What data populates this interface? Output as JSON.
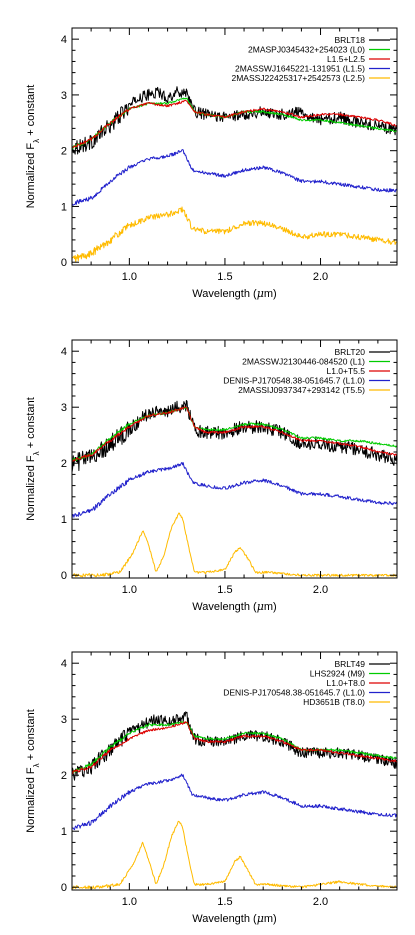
{
  "chart_data": [
    {
      "type": "line",
      "xlabel_prefix": "Wavelength (",
      "xlabel_mu": "μ",
      "xlabel_suffix": "m)",
      "ylabel_prefix": "Normalized F",
      "ylabel_sub": "λ",
      "ylabel_suffix": " + constant",
      "xlim": [
        0.7,
        2.4
      ],
      "ylim": [
        -0.05,
        4.2
      ],
      "xticks": [
        1.0,
        1.5,
        2.0
      ],
      "xtick_labels": [
        "1.0",
        "1.5",
        "2.0"
      ],
      "yticks": [
        0,
        1,
        2,
        3,
        4
      ],
      "ytick_labels": [
        "0",
        "1",
        "2",
        "3",
        "4"
      ],
      "legend_position": "top-right",
      "series": [
        {
          "name": "BRLT18",
          "color": "#000000",
          "noise": 0.1,
          "x": [
            0.7,
            0.8,
            0.9,
            1.0,
            1.05,
            1.1,
            1.15,
            1.2,
            1.25,
            1.3,
            1.34,
            1.4,
            1.5,
            1.6,
            1.7,
            1.8,
            1.9,
            2.0,
            2.1,
            2.2,
            2.3,
            2.4
          ],
          "y": [
            2.05,
            2.15,
            2.45,
            2.8,
            2.95,
            3.0,
            3.05,
            2.95,
            3.05,
            3.05,
            2.7,
            2.65,
            2.6,
            2.65,
            2.7,
            2.65,
            2.7,
            2.55,
            2.6,
            2.5,
            2.45,
            2.35
          ]
        },
        {
          "name": "2MASPJ0345432+254023 (L0)",
          "color": "#00cc00",
          "noise": 0.02,
          "x": [
            0.7,
            0.8,
            0.9,
            1.0,
            1.1,
            1.2,
            1.3,
            1.34,
            1.4,
            1.5,
            1.6,
            1.7,
            1.8,
            1.9,
            2.0,
            2.1,
            2.2,
            2.3,
            2.4
          ],
          "y": [
            2.05,
            2.2,
            2.5,
            2.75,
            2.85,
            2.85,
            2.95,
            2.7,
            2.65,
            2.6,
            2.7,
            2.7,
            2.65,
            2.55,
            2.55,
            2.5,
            2.45,
            2.4,
            2.35
          ]
        },
        {
          "name": "L1.5+L2.5",
          "color": "#dd0000",
          "noise": 0.02,
          "x": [
            0.7,
            0.8,
            0.9,
            1.0,
            1.1,
            1.2,
            1.3,
            1.34,
            1.4,
            1.5,
            1.6,
            1.7,
            1.8,
            1.9,
            2.0,
            2.1,
            2.2,
            2.3,
            2.4
          ],
          "y": [
            2.05,
            2.2,
            2.5,
            2.75,
            2.85,
            2.8,
            2.9,
            2.7,
            2.65,
            2.6,
            2.7,
            2.75,
            2.7,
            2.6,
            2.65,
            2.65,
            2.6,
            2.55,
            2.45
          ]
        },
        {
          "name": "2MASSWJ1645221-131951 (L1.5)",
          "color": "#2222cc",
          "noise": 0.03,
          "x": [
            0.7,
            0.8,
            0.9,
            1.0,
            1.1,
            1.2,
            1.28,
            1.33,
            1.4,
            1.5,
            1.6,
            1.7,
            1.8,
            1.9,
            2.0,
            2.1,
            2.2,
            2.3,
            2.4
          ],
          "y": [
            1.05,
            1.15,
            1.45,
            1.7,
            1.85,
            1.9,
            2.0,
            1.65,
            1.6,
            1.55,
            1.65,
            1.7,
            1.6,
            1.45,
            1.45,
            1.4,
            1.35,
            1.3,
            1.28
          ]
        },
        {
          "name": "2MASSJ22425317+2542573 (L2.5)",
          "color": "#ffbb00",
          "noise": 0.05,
          "x": [
            0.7,
            0.8,
            0.9,
            1.0,
            1.1,
            1.2,
            1.28,
            1.33,
            1.4,
            1.5,
            1.6,
            1.7,
            1.8,
            1.9,
            2.0,
            2.1,
            2.2,
            2.3,
            2.4
          ],
          "y": [
            0.05,
            0.15,
            0.4,
            0.65,
            0.8,
            0.85,
            0.95,
            0.6,
            0.55,
            0.55,
            0.7,
            0.7,
            0.6,
            0.45,
            0.5,
            0.5,
            0.45,
            0.4,
            0.35
          ]
        }
      ]
    },
    {
      "type": "line",
      "xlabel_prefix": "Wavelength (",
      "xlabel_mu": "μ",
      "xlabel_suffix": "m)",
      "ylabel_prefix": "Normalized F",
      "ylabel_sub": "λ",
      "ylabel_suffix": " + constant",
      "xlim": [
        0.7,
        2.4
      ],
      "ylim": [
        -0.05,
        4.2
      ],
      "xticks": [
        1.0,
        1.5,
        2.0
      ],
      "xtick_labels": [
        "1.0",
        "1.5",
        "2.0"
      ],
      "yticks": [
        0,
        1,
        2,
        3,
        4
      ],
      "ytick_labels": [
        "0",
        "1",
        "2",
        "3",
        "4"
      ],
      "legend_position": "top-right",
      "series": [
        {
          "name": "BRLT20",
          "color": "#000000",
          "noise": 0.12,
          "x": [
            0.7,
            0.8,
            0.9,
            1.0,
            1.05,
            1.1,
            1.15,
            1.2,
            1.25,
            1.3,
            1.34,
            1.4,
            1.5,
            1.6,
            1.7,
            1.8,
            1.9,
            2.0,
            2.1,
            2.2,
            2.3,
            2.4
          ],
          "y": [
            2.0,
            2.1,
            2.35,
            2.6,
            2.75,
            2.9,
            2.95,
            2.9,
            3.0,
            3.05,
            2.6,
            2.55,
            2.55,
            2.65,
            2.65,
            2.55,
            2.35,
            2.35,
            2.3,
            2.25,
            2.15,
            2.05
          ]
        },
        {
          "name": "2MASSWJ2130446-084520 (L1)",
          "color": "#00cc00",
          "noise": 0.02,
          "x": [
            0.7,
            0.8,
            0.9,
            1.0,
            1.1,
            1.2,
            1.3,
            1.34,
            1.4,
            1.5,
            1.6,
            1.7,
            1.8,
            1.9,
            2.0,
            2.1,
            2.2,
            2.3,
            2.4
          ],
          "y": [
            2.05,
            2.15,
            2.45,
            2.7,
            2.85,
            2.9,
            3.0,
            2.65,
            2.6,
            2.6,
            2.7,
            2.7,
            2.6,
            2.45,
            2.45,
            2.4,
            2.4,
            2.35,
            2.3
          ]
        },
        {
          "name": "L1.0+T5.5",
          "color": "#dd0000",
          "noise": 0.02,
          "x": [
            0.7,
            0.8,
            0.9,
            1.0,
            1.1,
            1.2,
            1.3,
            1.34,
            1.4,
            1.5,
            1.6,
            1.7,
            1.8,
            1.9,
            2.0,
            2.1,
            2.2,
            2.3,
            2.4
          ],
          "y": [
            2.05,
            2.15,
            2.4,
            2.65,
            2.85,
            2.9,
            3.0,
            2.65,
            2.55,
            2.55,
            2.65,
            2.65,
            2.55,
            2.4,
            2.4,
            2.35,
            2.3,
            2.2,
            2.15
          ]
        },
        {
          "name": "DENIS-PJ170548.38-051645.7 (L1.0)",
          "color": "#2222cc",
          "noise": 0.03,
          "x": [
            0.7,
            0.8,
            0.9,
            1.0,
            1.1,
            1.2,
            1.28,
            1.33,
            1.4,
            1.5,
            1.6,
            1.7,
            1.8,
            1.9,
            2.0,
            2.1,
            2.2,
            2.3,
            2.4
          ],
          "y": [
            1.05,
            1.15,
            1.45,
            1.7,
            1.85,
            1.9,
            2.0,
            1.65,
            1.6,
            1.55,
            1.65,
            1.7,
            1.6,
            1.45,
            1.45,
            1.4,
            1.35,
            1.3,
            1.28
          ]
        },
        {
          "name": "2MASSIJ0937347+293142 (T5.5)",
          "color": "#ffbb00",
          "noise": 0.02,
          "x": [
            0.7,
            0.85,
            0.95,
            1.02,
            1.07,
            1.1,
            1.14,
            1.18,
            1.22,
            1.26,
            1.28,
            1.31,
            1.34,
            1.4,
            1.5,
            1.55,
            1.58,
            1.62,
            1.66,
            1.72,
            1.9,
            2.1,
            2.4
          ],
          "y": [
            0.0,
            0.0,
            0.05,
            0.4,
            0.8,
            0.55,
            0.05,
            0.35,
            0.85,
            1.1,
            1.0,
            0.5,
            0.05,
            0.05,
            0.1,
            0.4,
            0.5,
            0.3,
            0.05,
            0.05,
            0.0,
            0.0,
            0.0
          ]
        }
      ]
    },
    {
      "type": "line",
      "xlabel_prefix": "Wavelength (",
      "xlabel_mu": "μ",
      "xlabel_suffix": "m)",
      "ylabel_prefix": "Normalized F",
      "ylabel_sub": "λ",
      "ylabel_suffix": " + constant",
      "xlim": [
        0.7,
        2.4
      ],
      "ylim": [
        -0.05,
        4.2
      ],
      "xticks": [
        1.0,
        1.5,
        2.0
      ],
      "xtick_labels": [
        "1.0",
        "1.5",
        "2.0"
      ],
      "yticks": [
        0,
        1,
        2,
        3,
        4
      ],
      "ytick_labels": [
        "0",
        "1",
        "2",
        "3",
        "4"
      ],
      "legend_position": "top-right",
      "series": [
        {
          "name": "BRLT49",
          "color": "#000000",
          "noise": 0.1,
          "x": [
            0.7,
            0.8,
            0.9,
            1.0,
            1.05,
            1.1,
            1.15,
            1.2,
            1.25,
            1.3,
            1.34,
            1.4,
            1.5,
            1.6,
            1.7,
            1.8,
            1.9,
            2.0,
            2.1,
            2.2,
            2.3,
            2.4
          ],
          "y": [
            2.0,
            2.15,
            2.45,
            2.75,
            2.85,
            2.95,
            3.0,
            2.95,
            3.0,
            3.05,
            2.65,
            2.6,
            2.6,
            2.7,
            2.7,
            2.6,
            2.4,
            2.4,
            2.4,
            2.35,
            2.3,
            2.2
          ]
        },
        {
          "name": "LHS2924 (M9)",
          "color": "#00cc00",
          "noise": 0.02,
          "x": [
            0.7,
            0.8,
            0.9,
            1.0,
            1.1,
            1.2,
            1.3,
            1.34,
            1.4,
            1.5,
            1.6,
            1.7,
            1.8,
            1.9,
            2.0,
            2.1,
            2.2,
            2.3,
            2.4
          ],
          "y": [
            2.05,
            2.2,
            2.5,
            2.75,
            2.9,
            2.9,
            2.95,
            2.7,
            2.65,
            2.65,
            2.75,
            2.75,
            2.65,
            2.45,
            2.45,
            2.45,
            2.4,
            2.35,
            2.3
          ]
        },
        {
          "name": "L1.0+T8.0",
          "color": "#dd0000",
          "noise": 0.02,
          "x": [
            0.7,
            0.8,
            0.9,
            1.0,
            1.1,
            1.2,
            1.3,
            1.34,
            1.4,
            1.5,
            1.6,
            1.7,
            1.8,
            1.9,
            2.0,
            2.1,
            2.2,
            2.3,
            2.4
          ],
          "y": [
            2.05,
            2.15,
            2.45,
            2.65,
            2.8,
            2.85,
            2.95,
            2.65,
            2.6,
            2.6,
            2.7,
            2.7,
            2.6,
            2.45,
            2.45,
            2.4,
            2.35,
            2.3,
            2.25
          ]
        },
        {
          "name": "DENIS-PJ170548.38-051645.7 (L1.0)",
          "color": "#2222cc",
          "noise": 0.03,
          "x": [
            0.7,
            0.8,
            0.9,
            1.0,
            1.1,
            1.2,
            1.28,
            1.33,
            1.4,
            1.5,
            1.6,
            1.7,
            1.8,
            1.9,
            2.0,
            2.1,
            2.2,
            2.3,
            2.4
          ],
          "y": [
            1.05,
            1.15,
            1.45,
            1.7,
            1.85,
            1.9,
            2.0,
            1.65,
            1.6,
            1.55,
            1.65,
            1.7,
            1.6,
            1.45,
            1.45,
            1.4,
            1.35,
            1.3,
            1.28
          ]
        },
        {
          "name": "HD3651B (T8.0)",
          "color": "#ffbb00",
          "noise": 0.02,
          "x": [
            0.7,
            0.85,
            0.95,
            1.02,
            1.07,
            1.1,
            1.14,
            1.18,
            1.22,
            1.26,
            1.28,
            1.31,
            1.34,
            1.4,
            1.5,
            1.55,
            1.58,
            1.62,
            1.66,
            1.72,
            1.9,
            2.0,
            2.1,
            2.2,
            2.4
          ],
          "y": [
            0.0,
            0.0,
            0.05,
            0.4,
            0.8,
            0.5,
            0.05,
            0.4,
            0.9,
            1.2,
            1.05,
            0.5,
            0.05,
            0.05,
            0.1,
            0.45,
            0.55,
            0.3,
            0.05,
            0.05,
            0.0,
            0.05,
            0.1,
            0.05,
            0.0
          ]
        }
      ]
    }
  ]
}
